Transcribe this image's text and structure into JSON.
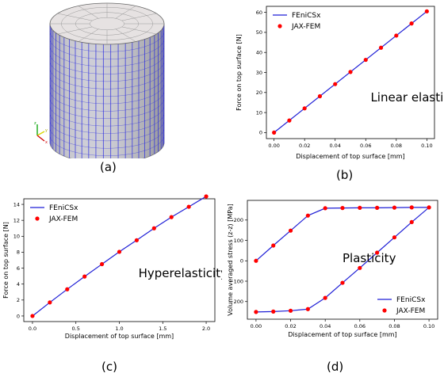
{
  "captions": {
    "a": "(a)",
    "b": "(b)",
    "c": "(c)",
    "d": "(d)"
  },
  "colors": {
    "line": "#1f1fd6",
    "markers": "#ff0000",
    "mesh_fill": "#c9c9d2",
    "mesh_lines": "#2a2ae0",
    "mesh_top": "#e6e2e2",
    "triad_x": "#d00000",
    "triad_y": "#d8d800",
    "triad_z": "#00a000"
  },
  "mesh_panel": {
    "type": "3d-mesh-render",
    "shape": "cylinder",
    "triad_labels": {
      "x": "x",
      "y": "y",
      "z": "z"
    }
  },
  "chart_data": [
    {
      "id": "b",
      "type": "line",
      "annotation": "Linear elasticity",
      "xlabel": "Displacement of top surface [mm]",
      "ylabel": "Force on top surface [N]",
      "xlim": [
        0,
        0.1
      ],
      "ylim": [
        0,
        60
      ],
      "xticks": [
        "0.00",
        "0.02",
        "0.04",
        "0.06",
        "0.08",
        "0.10"
      ],
      "xtick_values": [
        0,
        0.02,
        0.04,
        0.06,
        0.08,
        0.1
      ],
      "yticks": [
        "0",
        "10",
        "20",
        "30",
        "40",
        "50",
        "60"
      ],
      "ytick_values": [
        0,
        10,
        20,
        30,
        40,
        50,
        60
      ],
      "legend": "top-left",
      "series": [
        {
          "name": "FEniCSx",
          "kind": "line",
          "x": [
            0,
            0.1
          ],
          "y": [
            0,
            60.5
          ]
        },
        {
          "name": "JAX-FEM",
          "kind": "markers",
          "x": [
            0,
            0.01,
            0.02,
            0.03,
            0.04,
            0.05,
            0.06,
            0.07,
            0.08,
            0.09,
            0.1
          ],
          "y": [
            0,
            6.05,
            12.1,
            18.15,
            24.2,
            30.25,
            36.3,
            42.35,
            48.4,
            54.45,
            60.5
          ]
        }
      ]
    },
    {
      "id": "c",
      "type": "line",
      "annotation": "Hyperelasticity",
      "xlabel": "Displacement of top surface [mm]",
      "ylabel": "Force on top surface [N]",
      "xlim": [
        0,
        2.0
      ],
      "ylim": [
        0,
        14
      ],
      "xticks": [
        "0.0",
        "0.5",
        "1.0",
        "1.5",
        "2.0"
      ],
      "xtick_values": [
        0,
        0.5,
        1.0,
        1.5,
        2.0
      ],
      "yticks": [
        "0",
        "2",
        "4",
        "6",
        "8",
        "10",
        "12",
        "14"
      ],
      "ytick_values": [
        0,
        2,
        4,
        6,
        8,
        10,
        12,
        14
      ],
      "legend": "top-left",
      "series": [
        {
          "name": "FEniCSx",
          "kind": "line",
          "x": [
            0,
            0.2,
            0.4,
            0.6,
            0.8,
            1.0,
            1.2,
            1.4,
            1.6,
            1.8,
            2.0
          ],
          "y": [
            0,
            1.7,
            3.35,
            4.95,
            6.5,
            8.05,
            9.5,
            11.0,
            12.4,
            13.7,
            15.0
          ]
        },
        {
          "name": "JAX-FEM",
          "kind": "markers",
          "x": [
            0,
            0.2,
            0.4,
            0.6,
            0.8,
            1.0,
            1.2,
            1.4,
            1.6,
            1.8,
            2.0
          ],
          "y": [
            0,
            1.7,
            3.35,
            4.95,
            6.5,
            8.05,
            9.5,
            11.0,
            12.4,
            13.7,
            15.0
          ]
        }
      ]
    },
    {
      "id": "d",
      "type": "line",
      "annotation": "Plasticity",
      "xlabel": "Displacement of top surface [mm]",
      "ylabel": "Volume averaged stress (z-z) [MPa]",
      "xlim": [
        0,
        0.1
      ],
      "ylim": [
        -260,
        270
      ],
      "xticks": [
        "0.00",
        "0.02",
        "0.04",
        "0.06",
        "0.08",
        "0.10"
      ],
      "xtick_values": [
        0,
        0.02,
        0.04,
        0.06,
        0.08,
        0.1
      ],
      "yticks": [
        "−200",
        "−100",
        "0",
        "100",
        "200"
      ],
      "ytick_values": [
        -200,
        -100,
        0,
        100,
        200
      ],
      "legend": "bottom-right",
      "series": [
        {
          "name": "FEniCSx",
          "kind": "line",
          "x": [
            0,
            0.01,
            0.02,
            0.03,
            0.04,
            0.05,
            0.06,
            0.07,
            0.08,
            0.09,
            0.1,
            0.09,
            0.08,
            0.07,
            0.06,
            0.05,
            0.04,
            0.03,
            0.02,
            0.01,
            0
          ],
          "y": [
            0,
            75,
            148,
            222,
            258,
            259,
            260,
            260,
            261,
            262,
            262,
            190,
            115,
            40,
            -35,
            -108,
            -182,
            -237,
            -245,
            -249,
            -251
          ]
        },
        {
          "name": "JAX-FEM",
          "kind": "markers",
          "x": [
            0,
            0.01,
            0.02,
            0.03,
            0.04,
            0.05,
            0.06,
            0.07,
            0.08,
            0.09,
            0.1,
            0.09,
            0.08,
            0.07,
            0.06,
            0.05,
            0.04,
            0.03,
            0.02,
            0.01,
            0
          ],
          "y": [
            0,
            75,
            148,
            222,
            258,
            259,
            260,
            260,
            261,
            262,
            262,
            190,
            115,
            40,
            -35,
            -108,
            -182,
            -237,
            -245,
            -249,
            -251
          ]
        }
      ]
    }
  ]
}
